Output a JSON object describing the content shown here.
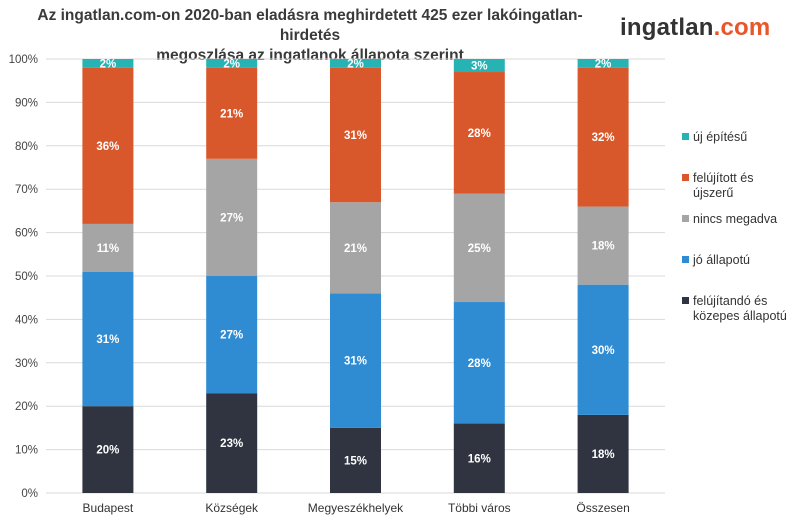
{
  "title": {
    "line1": "Az ingatlan.com-on 2020-ban eladásra meghirdetett 425 ezer lakóingatlan-hirdetés",
    "line2": "megoszlása  az ingatlanok állapota szerint"
  },
  "logo": {
    "part1": "ingatlan",
    "part2": ".com"
  },
  "colors": {
    "uj_epitesu": "#27b3b3",
    "felujitott": "#d9582b",
    "nincs_megadva": "#a5a5a5",
    "jo_allapotu": "#2f8bd2",
    "felujitando": "#2f3440",
    "grid": "#d9d9d9"
  },
  "chart_data": {
    "type": "bar",
    "stacked": true,
    "categories": [
      "Budapest",
      "Községek",
      "Megyeszékhelyek",
      "Többi város",
      "Összesen"
    ],
    "series": [
      {
        "name": "felújítandó és közepes állapotú",
        "legend_lines": [
          "felújítandó és",
          "közepes állapotú"
        ],
        "color_key": "felujitando",
        "values": [
          20,
          23,
          15,
          16,
          18
        ]
      },
      {
        "name": "jó állapotú",
        "legend_lines": [
          "jó állapotú"
        ],
        "color_key": "jo_allapotu",
        "values": [
          31,
          27,
          31,
          28,
          30
        ]
      },
      {
        "name": "nincs megadva",
        "legend_lines": [
          "nincs megadva"
        ],
        "color_key": "nincs_megadva",
        "values": [
          11,
          27,
          21,
          25,
          18
        ]
      },
      {
        "name": "felújított és újszerű",
        "legend_lines": [
          "felújított és",
          "újszerű"
        ],
        "color_key": "felujitott",
        "values": [
          36,
          21,
          31,
          28,
          32
        ]
      },
      {
        "name": "új építésű",
        "legend_lines": [
          "új építésű"
        ],
        "color_key": "uj_epitesu",
        "values": [
          2,
          2,
          2,
          3,
          2
        ]
      }
    ],
    "legend_order": [
      "új építésű",
      "felújított és újszerű",
      "nincs megadva",
      "jó állapotú",
      "felújítandó és közepes állapotú"
    ],
    "ylim": [
      0,
      100
    ],
    "yticks": [
      0,
      10,
      20,
      30,
      40,
      50,
      60,
      70,
      80,
      90,
      100
    ],
    "ytick_suffix": "%",
    "data_label_suffix": "%",
    "grid": true,
    "legend_position": "right",
    "xlabel": "",
    "ylabel": ""
  }
}
